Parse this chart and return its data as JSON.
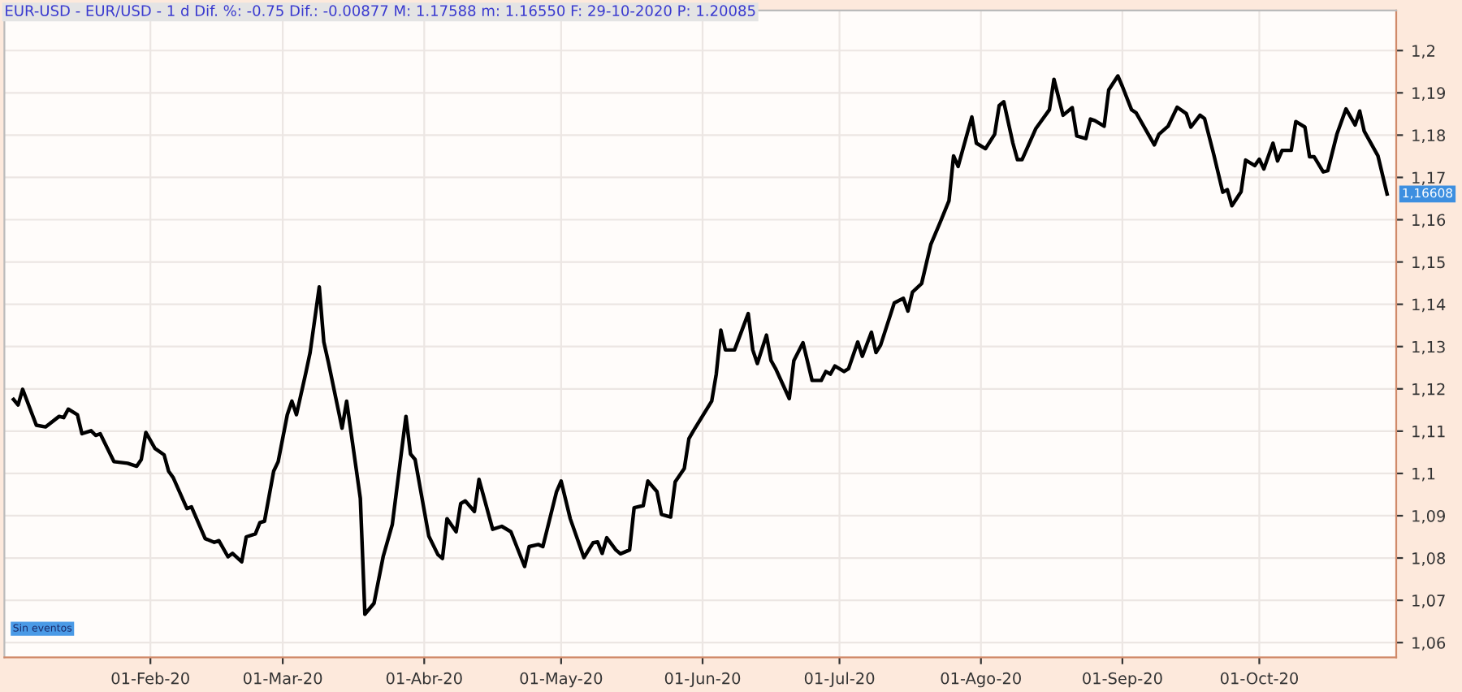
{
  "chart_data": {
    "type": "line",
    "title": "EUR-USD - EUR/USD - 1 d Dif. %: -0.75 Dif.: -0.00877 M: 1.17588 m: 1.16550 F: 29-10-2020 P: 1.20085",
    "x": [
      "2020-01-02",
      "2020-01-03",
      "2020-01-04",
      "2020-01-07",
      "2020-01-09",
      "2020-01-12",
      "2020-01-13",
      "2020-01-14",
      "2020-01-16",
      "2020-01-17",
      "2020-01-19",
      "2020-01-20",
      "2020-01-21",
      "2020-01-24",
      "2020-01-27",
      "2020-01-29",
      "2020-01-30",
      "2020-01-31",
      "2020-02-02",
      "2020-02-04",
      "2020-02-05",
      "2020-02-06",
      "2020-02-09",
      "2020-02-10",
      "2020-02-13",
      "2020-02-15",
      "2020-02-16",
      "2020-02-18",
      "2020-02-19",
      "2020-02-21",
      "2020-02-22",
      "2020-02-24",
      "2020-02-25",
      "2020-02-26",
      "2020-02-28",
      "2020-02-29",
      "2020-03-02",
      "2020-03-03",
      "2020-03-04",
      "2020-03-06",
      "2020-03-07",
      "2020-03-09",
      "2020-03-10",
      "2020-03-11",
      "2020-03-14",
      "2020-03-15",
      "2020-03-17",
      "2020-03-18",
      "2020-03-19",
      "2020-03-21",
      "2020-03-23",
      "2020-03-25",
      "2020-03-28",
      "2020-03-29",
      "2020-03-30",
      "2020-04-02",
      "2020-04-04",
      "2020-04-05",
      "2020-04-06",
      "2020-04-08",
      "2020-04-09",
      "2020-04-10",
      "2020-04-12",
      "2020-04-13",
      "2020-04-16",
      "2020-04-18",
      "2020-04-20",
      "2020-04-23",
      "2020-04-24",
      "2020-04-26",
      "2020-04-27",
      "2020-04-30",
      "2020-05-01",
      "2020-05-03",
      "2020-05-06",
      "2020-05-08",
      "2020-05-09",
      "2020-05-10",
      "2020-05-11",
      "2020-05-13",
      "2020-05-14",
      "2020-05-16",
      "2020-05-17",
      "2020-05-19",
      "2020-05-20",
      "2020-05-22",
      "2020-05-23",
      "2020-05-25",
      "2020-05-26",
      "2020-05-28",
      "2020-05-29",
      "2020-05-30",
      "2020-06-03",
      "2020-06-04",
      "2020-06-05",
      "2020-06-06",
      "2020-06-08",
      "2020-06-11",
      "2020-06-12",
      "2020-06-13",
      "2020-06-15",
      "2020-06-16",
      "2020-06-17",
      "2020-06-20",
      "2020-06-21",
      "2020-06-23",
      "2020-06-25",
      "2020-06-27",
      "2020-06-28",
      "2020-06-29",
      "2020-06-30",
      "2020-07-02",
      "2020-07-03",
      "2020-07-05",
      "2020-07-06",
      "2020-07-08",
      "2020-07-09",
      "2020-07-10",
      "2020-07-13",
      "2020-07-15",
      "2020-07-16",
      "2020-07-17",
      "2020-07-19",
      "2020-07-21",
      "2020-07-23",
      "2020-07-25",
      "2020-07-26",
      "2020-07-27",
      "2020-07-30",
      "2020-07-31",
      "2020-08-02",
      "2020-08-04",
      "2020-08-05",
      "2020-08-06",
      "2020-08-08",
      "2020-08-09",
      "2020-08-10",
      "2020-08-13",
      "2020-08-16",
      "2020-08-17",
      "2020-08-19",
      "2020-08-21",
      "2020-08-22",
      "2020-08-24",
      "2020-08-25",
      "2020-08-26",
      "2020-08-28",
      "2020-08-29",
      "2020-08-31",
      "2020-09-01",
      "2020-09-03",
      "2020-09-04",
      "2020-09-06",
      "2020-09-08",
      "2020-09-09",
      "2020-09-11",
      "2020-09-13",
      "2020-09-15",
      "2020-09-16",
      "2020-09-18",
      "2020-09-19",
      "2020-09-21",
      "2020-09-23",
      "2020-09-24",
      "2020-09-25",
      "2020-09-27",
      "2020-09-28",
      "2020-09-30",
      "2020-10-01",
      "2020-10-02",
      "2020-10-04",
      "2020-10-05",
      "2020-10-06",
      "2020-10-08",
      "2020-10-09",
      "2020-10-11",
      "2020-10-12",
      "2020-10-13",
      "2020-10-15",
      "2020-10-16",
      "2020-10-18",
      "2020-10-20",
      "2020-10-22",
      "2020-10-23",
      "2020-10-24",
      "2020-10-27",
      "2020-10-29"
    ],
    "series": [
      {
        "color": "#000000",
        "values": [
          1.1175,
          1.1162,
          1.1199,
          1.1114,
          1.111,
          1.1135,
          1.1132,
          1.1152,
          1.1139,
          1.1094,
          1.1101,
          1.109,
          1.1094,
          1.1028,
          1.1024,
          1.1017,
          1.1033,
          1.1097,
          1.1059,
          1.1044,
          1.1005,
          1.099,
          1.0917,
          1.0921,
          1.0846,
          1.0837,
          1.0841,
          1.0803,
          1.0811,
          1.0791,
          1.085,
          1.0857,
          1.0884,
          1.0887,
          1.1005,
          1.1028,
          1.1139,
          1.1171,
          1.1139,
          1.1235,
          1.1286,
          1.1441,
          1.1311,
          1.1263,
          1.1107,
          1.1171,
          1.1018,
          1.0941,
          1.0667,
          1.0693,
          1.0803,
          1.0879,
          1.1135,
          1.1046,
          1.1033,
          1.0852,
          1.0808,
          1.0799,
          1.0893,
          1.0862,
          1.0929,
          1.0935,
          1.091,
          1.0986,
          1.0868,
          1.0875,
          1.0862,
          1.078,
          1.0827,
          1.0832,
          1.0827,
          1.0957,
          1.0982,
          1.0893,
          1.0801,
          1.0836,
          1.0838,
          1.0811,
          1.0848,
          1.0819,
          1.081,
          1.0819,
          1.0919,
          1.0924,
          1.0982,
          1.0957,
          1.0903,
          1.0897,
          1.098,
          1.1012,
          1.1082,
          1.1101,
          1.1171,
          1.1235,
          1.1339,
          1.1292,
          1.1292,
          1.1378,
          1.1292,
          1.126,
          1.1327,
          1.1267,
          1.1248,
          1.1177,
          1.1267,
          1.1309,
          1.122,
          1.122,
          1.1241,
          1.1235,
          1.1254,
          1.1241,
          1.1248,
          1.1311,
          1.1277,
          1.1334,
          1.1286,
          1.1303,
          1.1403,
          1.1414,
          1.1384,
          1.1429,
          1.1449,
          1.1541,
          1.1592,
          1.1645,
          1.1751,
          1.1726,
          1.1843,
          1.1781,
          1.1768,
          1.1802,
          1.187,
          1.1879,
          1.1781,
          1.1742,
          1.1742,
          1.1815,
          1.186,
          1.1932,
          1.1847,
          1.1865,
          1.1798,
          1.1792,
          1.1838,
          1.1834,
          1.1821,
          1.1907,
          1.194,
          1.1915,
          1.186,
          1.1853,
          1.1815,
          1.1777,
          1.1802,
          1.1821,
          1.1866,
          1.1851,
          1.1819,
          1.1847,
          1.1839,
          1.1755,
          1.1665,
          1.1671,
          1.1633,
          1.1666,
          1.1741,
          1.1728,
          1.1743,
          1.172,
          1.1781,
          1.1739,
          1.1764,
          1.1764,
          1.1832,
          1.1819,
          1.1749,
          1.1749,
          1.1713,
          1.1716,
          1.1802,
          1.1862,
          1.1824,
          1.1857,
          1.1809,
          1.1751,
          1.1661
        ]
      }
    ],
    "xlim": [
      "2019-12-31",
      "2020-10-31"
    ],
    "xticks": [
      {
        "value": "2020-02-01",
        "label": "01-Feb-20"
      },
      {
        "value": "2020-03-01",
        "label": "01-Mar-20"
      },
      {
        "value": "2020-04-01",
        "label": "01-Abr-20"
      },
      {
        "value": "2020-05-01",
        "label": "01-May-20"
      },
      {
        "value": "2020-06-01",
        "label": "01-Jun-20"
      },
      {
        "value": "2020-07-01",
        "label": "01-Jul-20"
      },
      {
        "value": "2020-08-01",
        "label": "01-Ago-20"
      },
      {
        "value": "2020-09-01",
        "label": "01-Sep-20"
      },
      {
        "value": "2020-10-01",
        "label": "01-Oct-20"
      }
    ],
    "ylim": [
      1.0565,
      1.2095
    ],
    "yticks": [
      {
        "value": 1.06,
        "label": "1,06"
      },
      {
        "value": 1.07,
        "label": "1,07"
      },
      {
        "value": 1.08,
        "label": "1,08"
      },
      {
        "value": 1.09,
        "label": "1,09"
      },
      {
        "value": 1.1,
        "label": "1,1"
      },
      {
        "value": 1.11,
        "label": "1,11"
      },
      {
        "value": 1.12,
        "label": "1,12"
      },
      {
        "value": 1.13,
        "label": "1,13"
      },
      {
        "value": 1.14,
        "label": "1,14"
      },
      {
        "value": 1.15,
        "label": "1,15"
      },
      {
        "value": 1.16,
        "label": "1,16"
      },
      {
        "value": 1.17,
        "label": "1,17"
      },
      {
        "value": 1.18,
        "label": "1,18"
      },
      {
        "value": 1.19,
        "label": "1,19"
      },
      {
        "value": 1.2,
        "label": "1,2"
      }
    ],
    "annotations": [
      {
        "text": "1,16608",
        "x": "2020-10-29",
        "y": 1.16608
      },
      "Sin eventos"
    ],
    "grid": true,
    "legend": false,
    "marker": "none",
    "line_style": "solid"
  }
}
